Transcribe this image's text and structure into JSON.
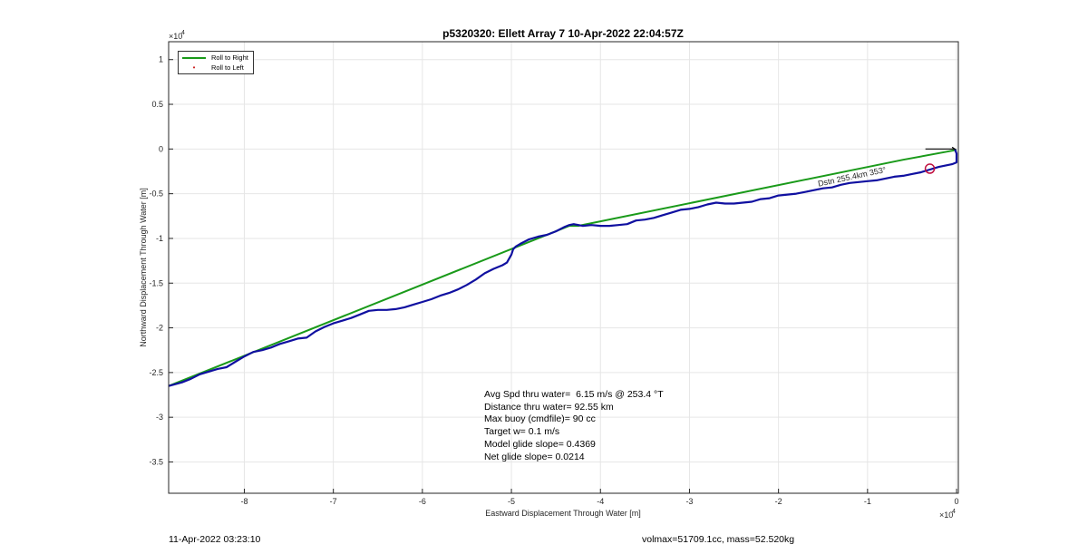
{
  "chart_data": {
    "type": "line",
    "title": "p5320320: Ellett Array 7 10-Apr-2022 22:04:57Z",
    "xlabel": "Eastward Displacement Through Water [m]",
    "ylabel": "Northward Displacement Through Water [m]",
    "x_exponent_label": "×10",
    "y_exponent_label": "×10",
    "exponent_power": "4",
    "xlim": [
      -8.85,
      0.02
    ],
    "ylim": [
      -3.85,
      1.2
    ],
    "x_ticks": [
      -8,
      -7,
      -6,
      -5,
      -4,
      -3,
      -2,
      -1,
      0
    ],
    "y_ticks": [
      1,
      0.5,
      0,
      -0.5,
      -1,
      -1.5,
      -2,
      -2.5,
      -3,
      -3.5
    ],
    "grid": true,
    "legend_position": "top-left",
    "series": [
      {
        "name": "Roll to Right",
        "color": "#1a9a1a",
        "x": [
          -8.85,
          -4.35,
          -4.25,
          -0.6,
          0.0
        ],
        "y": [
          -2.65,
          -0.86,
          -0.86,
          -0.12,
          -0.01
        ]
      },
      {
        "name": "Roll to Left",
        "color": "#cc2222",
        "x": [],
        "y": []
      },
      {
        "name": "",
        "color": "#1010a0",
        "x": [
          -8.85,
          -8.7,
          -8.6,
          -8.5,
          -8.3,
          -8.2,
          -8.1,
          -8.0,
          -7.9,
          -7.8,
          -7.7,
          -7.6,
          -7.5,
          -7.4,
          -7.3,
          -7.2,
          -7.1,
          -7.0,
          -6.9,
          -6.8,
          -6.7,
          -6.6,
          -6.5,
          -6.4,
          -6.3,
          -6.2,
          -6.1,
          -6.0,
          -5.9,
          -5.8,
          -5.7,
          -5.6,
          -5.5,
          -5.4,
          -5.3,
          -5.2,
          -5.1,
          -5.05,
          -5.0,
          -4.98,
          -4.95,
          -4.9,
          -4.8,
          -4.7,
          -4.6,
          -4.5,
          -4.4,
          -4.35,
          -4.3,
          -4.2,
          -4.1,
          -4.0,
          -3.9,
          -3.8,
          -3.7,
          -3.6,
          -3.5,
          -3.4,
          -3.3,
          -3.2,
          -3.1,
          -3.0,
          -2.9,
          -2.8,
          -2.7,
          -2.6,
          -2.5,
          -2.4,
          -2.3,
          -2.2,
          -2.1,
          -2.0,
          -1.9,
          -1.8,
          -1.7,
          -1.6,
          -1.5,
          -1.4,
          -1.3,
          -1.2,
          -1.1,
          -1.0,
          -0.9,
          -0.8,
          -0.7,
          -0.6,
          -0.5,
          -0.4,
          -0.3,
          -0.2,
          -0.1,
          -0.05,
          0.0,
          0.0,
          -0.02
        ],
        "y": [
          -2.65,
          -2.61,
          -2.57,
          -2.52,
          -2.46,
          -2.44,
          -2.38,
          -2.32,
          -2.27,
          -2.25,
          -2.22,
          -2.18,
          -2.15,
          -2.12,
          -2.11,
          -2.04,
          -1.99,
          -1.95,
          -1.92,
          -1.89,
          -1.85,
          -1.81,
          -1.8,
          -1.8,
          -1.79,
          -1.77,
          -1.74,
          -1.71,
          -1.68,
          -1.64,
          -1.61,
          -1.57,
          -1.52,
          -1.46,
          -1.39,
          -1.34,
          -1.3,
          -1.27,
          -1.18,
          -1.12,
          -1.09,
          -1.06,
          -1.01,
          -0.98,
          -0.96,
          -0.92,
          -0.87,
          -0.85,
          -0.84,
          -0.86,
          -0.85,
          -0.86,
          -0.86,
          -0.85,
          -0.84,
          -0.8,
          -0.79,
          -0.77,
          -0.74,
          -0.71,
          -0.68,
          -0.67,
          -0.65,
          -0.62,
          -0.6,
          -0.61,
          -0.61,
          -0.6,
          -0.59,
          -0.56,
          -0.55,
          -0.52,
          -0.51,
          -0.5,
          -0.48,
          -0.46,
          -0.44,
          -0.43,
          -0.4,
          -0.38,
          -0.37,
          -0.36,
          -0.35,
          -0.33,
          -0.31,
          -0.3,
          -0.28,
          -0.26,
          -0.23,
          -0.2,
          -0.18,
          -0.17,
          -0.15,
          -0.05,
          0.0
        ]
      }
    ],
    "marker_circle": {
      "x": -0.3,
      "y": -0.22,
      "color": "#c01040"
    },
    "annotation_text": "Dstn 255.4km 353°",
    "annotation_color": "#000000"
  },
  "stats": {
    "line1": "Avg Spd thru water=  6.15 m/s @ 253.4 °T",
    "line2": "Distance thru water= 92.55 km",
    "line3": "Max buoy (cmdfile)= 90 cc",
    "line4": "Target w= 0.1 m/s",
    "line5": "Model glide slope= 0.4369",
    "line6": "Net glide slope= 0.0214"
  },
  "legend": {
    "item1": "Roll to Right",
    "item2": "Roll to Left"
  },
  "footer": {
    "left": "11-Apr-2022 03:23:10",
    "right": "volmax=51709.1cc, mass=52.520kg"
  }
}
